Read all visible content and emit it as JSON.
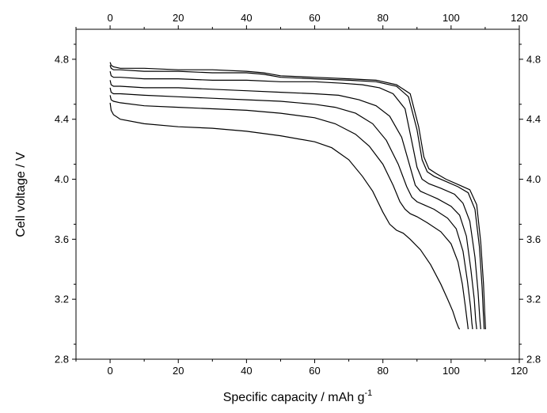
{
  "chart_data": {
    "type": "line",
    "title": "",
    "xlabel": "Specific capacity / mAh g",
    "xlabel_superscript": "-1",
    "ylabel": "Cell voltage / V",
    "xlim": [
      -10,
      120
    ],
    "ylim": [
      2.8,
      5.0
    ],
    "xticks": [
      0,
      20,
      40,
      60,
      80,
      100,
      120
    ],
    "yticks": [
      2.8,
      3.2,
      3.6,
      4.0,
      4.4,
      4.8
    ],
    "xtick_labels": [
      "0",
      "20",
      "40",
      "60",
      "80",
      "100",
      "120"
    ],
    "ytick_labels": [
      "2.8",
      "3.2",
      "3.6",
      "4.0",
      "4.4",
      "4.8"
    ],
    "mirror_axes": true,
    "grid": false,
    "legend": "none",
    "line_color": "#000000",
    "series": [
      {
        "x": [
          0,
          0.3,
          1,
          3,
          10,
          20,
          30,
          40,
          50,
          60,
          65,
          70,
          74,
          77,
          80,
          82,
          84,
          86,
          88,
          91,
          94,
          97,
          99,
          100.5,
          101.5,
          102.2,
          102.5
        ],
        "y": [
          4.51,
          4.46,
          4.43,
          4.4,
          4.37,
          4.35,
          4.34,
          4.32,
          4.29,
          4.25,
          4.21,
          4.13,
          4.02,
          3.92,
          3.78,
          3.7,
          3.66,
          3.64,
          3.6,
          3.53,
          3.43,
          3.3,
          3.2,
          3.12,
          3.05,
          3.01,
          3.0
        ]
      },
      {
        "x": [
          0,
          0.3,
          1,
          3,
          10,
          20,
          30,
          40,
          50,
          60,
          66,
          72,
          76,
          80,
          83,
          85,
          86.5,
          88,
          90,
          93,
          97,
          100,
          102,
          103.3,
          104.2,
          104.8,
          105
        ],
        "y": [
          4.56,
          4.53,
          4.52,
          4.51,
          4.49,
          4.48,
          4.47,
          4.46,
          4.44,
          4.41,
          4.37,
          4.3,
          4.22,
          4.1,
          3.96,
          3.85,
          3.8,
          3.77,
          3.75,
          3.71,
          3.65,
          3.57,
          3.45,
          3.3,
          3.15,
          3.04,
          3.0
        ]
      },
      {
        "x": [
          0,
          0.3,
          1,
          3,
          10,
          20,
          30,
          40,
          50,
          60,
          66,
          72,
          77,
          81,
          84.5,
          87,
          88.5,
          90,
          92,
          95,
          99,
          101.5,
          103.5,
          104.8,
          105.7,
          106.1,
          106.3
        ],
        "y": [
          4.61,
          4.58,
          4.57,
          4.57,
          4.56,
          4.55,
          4.54,
          4.53,
          4.52,
          4.5,
          4.48,
          4.44,
          4.37,
          4.26,
          4.1,
          3.95,
          3.88,
          3.85,
          3.83,
          3.8,
          3.74,
          3.67,
          3.52,
          3.32,
          3.15,
          3.04,
          3.0
        ]
      },
      {
        "x": [
          0,
          0.3,
          1,
          3,
          10,
          20,
          30,
          40,
          50,
          60,
          67,
          73,
          78,
          82,
          85.5,
          88,
          89.5,
          91,
          93,
          96,
          100,
          102.5,
          104.5,
          105.8,
          106.8,
          107.2,
          107.5
        ],
        "y": [
          4.66,
          4.63,
          4.62,
          4.62,
          4.61,
          4.61,
          4.6,
          4.59,
          4.58,
          4.57,
          4.56,
          4.53,
          4.49,
          4.42,
          4.28,
          4.08,
          3.96,
          3.92,
          3.9,
          3.87,
          3.82,
          3.76,
          3.62,
          3.4,
          3.2,
          3.06,
          3.0
        ]
      },
      {
        "x": [
          0,
          0.3,
          1,
          3,
          10,
          20,
          30,
          40,
          50,
          60,
          68,
          74,
          79,
          83,
          86.5,
          88.5,
          90,
          91.5,
          93.5,
          97,
          101,
          103.5,
          105.5,
          107,
          107.9,
          108.4,
          108.7
        ],
        "y": [
          4.72,
          4.69,
          4.68,
          4.68,
          4.67,
          4.67,
          4.66,
          4.66,
          4.65,
          4.65,
          4.64,
          4.63,
          4.61,
          4.57,
          4.47,
          4.25,
          4.08,
          4.0,
          3.97,
          3.94,
          3.9,
          3.84,
          3.72,
          3.48,
          3.25,
          3.08,
          3.0
        ]
      },
      {
        "x": [
          0,
          0.3,
          1,
          3,
          10,
          20,
          30,
          40,
          45,
          50,
          60,
          70,
          78,
          84,
          87.5,
          90,
          91.5,
          93,
          95,
          98,
          102,
          105,
          107,
          108.3,
          109.1,
          109.5,
          109.7
        ],
        "y": [
          4.76,
          4.74,
          4.73,
          4.73,
          4.72,
          4.72,
          4.71,
          4.71,
          4.7,
          4.68,
          4.67,
          4.66,
          4.65,
          4.62,
          4.55,
          4.33,
          4.13,
          4.05,
          4.02,
          3.99,
          3.95,
          3.91,
          3.8,
          3.55,
          3.28,
          3.08,
          3.0
        ]
      },
      {
        "x": [
          0,
          0.3,
          1,
          3,
          10,
          20,
          30,
          40,
          45,
          50,
          60,
          70,
          78,
          84,
          88,
          90.5,
          92,
          93.5,
          95.5,
          98.5,
          102.5,
          105.5,
          107.5,
          108.7,
          109.5,
          109.9,
          110.1
        ],
        "y": [
          4.78,
          4.76,
          4.75,
          4.74,
          4.74,
          4.73,
          4.73,
          4.72,
          4.71,
          4.69,
          4.68,
          4.67,
          4.66,
          4.63,
          4.57,
          4.35,
          4.15,
          4.07,
          4.04,
          4.0,
          3.96,
          3.93,
          3.83,
          3.58,
          3.3,
          3.09,
          3.0
        ]
      }
    ]
  }
}
